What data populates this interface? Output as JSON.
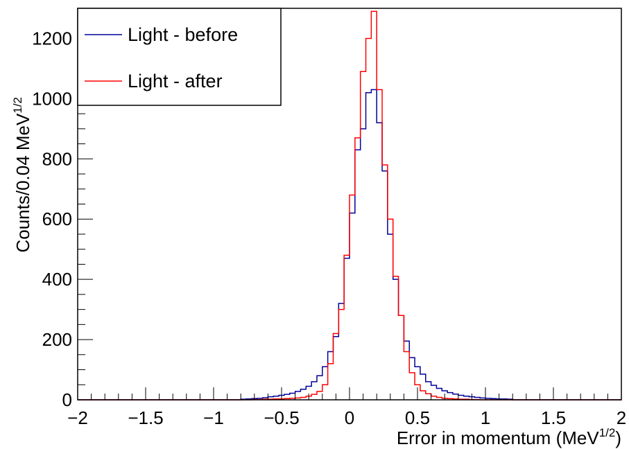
{
  "chart_data": {
    "type": "line",
    "xlabel_main": "Error in momentum (MeV",
    "xlabel_sup": "1/2",
    "xlabel_end": ")",
    "ylabel_main": "Counts/0.04 MeV",
    "ylabel_sup": "1/2",
    "xlim": [
      -2,
      2
    ],
    "ylim": [
      0,
      1300
    ],
    "x_ticks": [
      -2,
      -1.5,
      -1,
      -0.5,
      0,
      0.5,
      1,
      1.5,
      2
    ],
    "x_tick_labels": [
      "−2",
      "−1.5",
      "−1",
      "−0.5",
      "0",
      "0.5",
      "1",
      "1.5",
      "2"
    ],
    "y_ticks": [
      0,
      200,
      400,
      600,
      800,
      1000,
      1200
    ],
    "y_tick_labels": [
      "0",
      "200",
      "400",
      "600",
      "800",
      "1000",
      "1200"
    ],
    "grid": false,
    "legend_position": "top-left",
    "bin_width": 0.04,
    "bin_start": -1.2,
    "series": [
      {
        "name": "Light - before",
        "color": "#000099",
        "values": [
          0,
          0,
          0,
          0,
          0,
          0,
          0,
          0,
          0,
          0,
          2,
          3,
          4,
          5,
          7,
          10,
          12,
          15,
          18,
          22,
          28,
          35,
          45,
          60,
          80,
          110,
          160,
          210,
          320,
          470,
          620,
          830,
          900,
          1020,
          1030,
          920,
          760,
          550,
          400,
          280,
          195,
          140,
          110,
          85,
          60,
          48,
          38,
          30,
          24,
          19,
          15,
          12,
          10,
          8,
          6,
          5,
          4,
          3,
          3,
          2,
          0
        ]
      },
      {
        "name": "Light - after",
        "color": "#ff0000",
        "values": [
          0,
          0,
          0,
          0,
          0,
          0,
          0,
          0,
          0,
          0,
          0,
          0,
          1,
          1,
          2,
          2,
          3,
          3,
          4,
          5,
          6,
          8,
          12,
          18,
          28,
          50,
          120,
          220,
          300,
          480,
          680,
          870,
          1090,
          1200,
          1290,
          1030,
          780,
          600,
          410,
          280,
          160,
          90,
          50,
          30,
          20,
          12,
          8,
          5,
          4,
          3,
          2,
          2,
          1,
          1,
          0,
          0,
          0,
          0,
          0,
          0,
          0
        ]
      }
    ]
  }
}
